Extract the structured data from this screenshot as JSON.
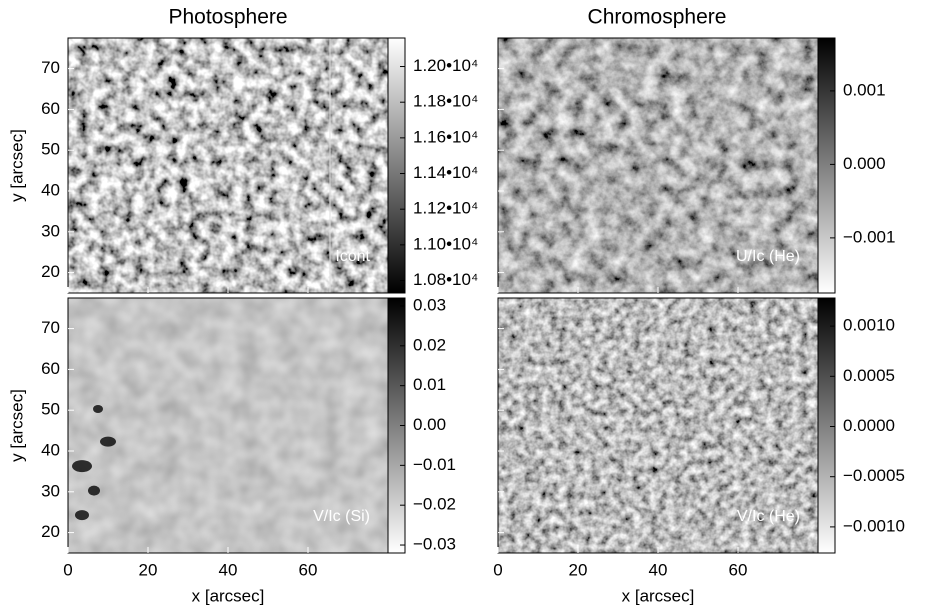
{
  "columns": [
    "Photosphere",
    "Chromosphere"
  ],
  "x_axis": {
    "label": "x [arcsec]",
    "lim": [
      0,
      80
    ],
    "ticks": [
      0,
      20,
      40,
      60
    ]
  },
  "y_axis": {
    "label": "y [arcsec]",
    "lim": [
      15,
      77.5
    ],
    "ticks": [
      20,
      30,
      40,
      50,
      60,
      70
    ]
  },
  "panels": [
    {
      "label": "Icont",
      "cmap": "gray",
      "clim": [
        10730,
        12160
      ],
      "cticks": [
        {
          "value": 10800,
          "label": "1.08•10⁴"
        },
        {
          "value": 11000,
          "label": "1.10•10⁴"
        },
        {
          "value": 11200,
          "label": "1.12•10⁴"
        },
        {
          "value": 11400,
          "label": "1.14•10⁴"
        },
        {
          "value": 11600,
          "label": "1.16•10⁴"
        },
        {
          "value": 11800,
          "label": "1.18•10⁴"
        },
        {
          "value": 12000,
          "label": "1.20•10⁴"
        }
      ]
    },
    {
      "label": "U/Ic (He)",
      "cmap": "gray_r",
      "clim": [
        -0.00175,
        0.00172
      ],
      "cticks": [
        {
          "value": -0.001,
          "label": "−0.001"
        },
        {
          "value": 0,
          "label": "0.000"
        },
        0.001
      ]
    },
    {
      "label": "V/Ic (Si)",
      "cmap": "gray_r",
      "clim": [
        -0.032,
        0.032
      ],
      "cticks": [
        {
          "value": -0.03,
          "label": "−0.03"
        },
        {
          "value": -0.02,
          "label": "−0.02"
        },
        {
          "value": -0.01,
          "label": "−0.01"
        },
        {
          "value": 0,
          "label": "0.00"
        },
        0.01,
        0.02,
        0.03
      ]
    },
    {
      "label": "V/Ic (He)",
      "cmap": "gray_r",
      "clim": [
        -0.00126,
        0.00128
      ],
      "cticks": [
        {
          "value": -0.001,
          "label": "−0.0010"
        },
        {
          "value": -0.0005,
          "label": "−0.0005"
        },
        {
          "value": 0,
          "label": "0.0000"
        },
        {
          "value": 0.0005,
          "label": "0.0005"
        },
        {
          "value": 0.001,
          "label": "0.0010"
        }
      ]
    }
  ]
}
